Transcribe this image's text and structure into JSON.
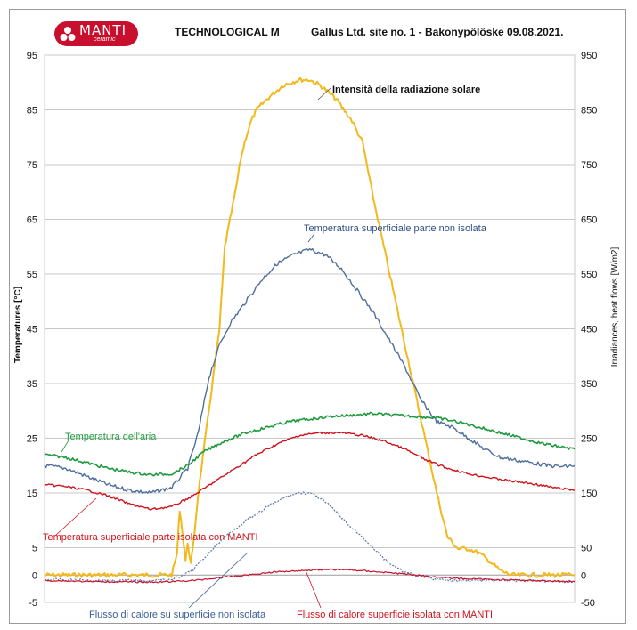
{
  "header": {
    "logo_text": "MANTI",
    "logo_subtext": "ceramic",
    "title_left": "TECHNOLOGICAL M",
    "title_right": "Gallus Ltd. site no. 1 - Bakonypölöske 09.08.2021."
  },
  "colors": {
    "radiation": "#f2b81c",
    "surface_uninsulated": "#4e6f9c",
    "air": "#1e9a3e",
    "surface_insulated": "#d0111b",
    "flow_uninsulated": "#5a78a8",
    "flow_insulated": "#c8102e",
    "grid": "#c8c8c8"
  },
  "chart_data": {
    "type": "line",
    "title": "TECHNOLOGICAL M",
    "subtitle": "Gallus Ltd. site no. 1 - Bakonypölöske 09.08.2021.",
    "xlabel": "",
    "ylabel": "Temperatures [°C]",
    "y2label": "Irradiances, heat flows [W/m2]",
    "ylim": [
      -5,
      95
    ],
    "y2lim": [
      -50,
      950
    ],
    "yticks": [
      "-5",
      "0",
      "5",
      "15",
      "25",
      "35",
      "45",
      "55",
      "65",
      "75",
      "85",
      "95"
    ],
    "y2ticks": [
      "-50",
      "0",
      "50",
      "150",
      "250",
      "350",
      "450",
      "550",
      "650",
      "750",
      "850",
      "950"
    ],
    "grid": true,
    "x_domain": [
      0,
      100
    ],
    "series": [
      {
        "name": "Intensità della radiazione solare",
        "axis": "right",
        "style": "solid",
        "x": [
          0,
          24,
          25,
          25.5,
          26,
          26.6,
          27,
          27.6,
          28,
          29,
          31,
          33,
          34,
          35,
          36,
          37,
          38,
          39,
          40,
          42,
          45,
          48,
          50,
          52,
          55,
          58,
          60,
          61,
          62,
          64,
          66,
          68,
          70,
          72,
          74,
          76,
          78,
          80,
          82,
          84,
          86,
          88,
          90,
          92,
          94,
          96,
          98,
          100
        ],
        "y": [
          0,
          0,
          40,
          120,
          80,
          25,
          60,
          20,
          50,
          150,
          300,
          450,
          600,
          650,
          700,
          760,
          800,
          830,
          850,
          870,
          895,
          905,
          905,
          895,
          870,
          830,
          790,
          740,
          690,
          600,
          510,
          420,
          330,
          240,
          150,
          70,
          48,
          48,
          40,
          25,
          8,
          0,
          0,
          0,
          0,
          0,
          0,
          0
        ]
      },
      {
        "name": "Temperatura superficiale parte non isolata",
        "axis": "left",
        "style": "solid",
        "x": [
          0,
          4,
          8,
          12,
          16,
          20,
          24,
          27,
          29,
          31,
          33,
          35,
          38,
          41,
          44,
          47,
          50,
          53,
          56,
          59,
          62,
          65,
          68,
          71,
          74,
          77,
          80,
          83,
          86,
          89,
          92,
          95,
          98,
          100
        ],
        "y": [
          20,
          19.5,
          18,
          16.5,
          15.5,
          15,
          16,
          19.5,
          26,
          36,
          42,
          46,
          50,
          54,
          57,
          58.5,
          59.5,
          58.5,
          56,
          52,
          48,
          43,
          38,
          32,
          28,
          27,
          25,
          23,
          21.5,
          21,
          20.5,
          20,
          19.8,
          20
        ]
      },
      {
        "name": "Temperatura dell'aria",
        "axis": "left",
        "style": "solid",
        "x": [
          0,
          4,
          8,
          12,
          16,
          20,
          24,
          27,
          30,
          34,
          38,
          42,
          46,
          50,
          54,
          58,
          62,
          66,
          70,
          74,
          78,
          82,
          86,
          90,
          94,
          98,
          100
        ],
        "y": [
          22,
          21.5,
          20.5,
          19.5,
          18.8,
          18.3,
          18.5,
          20,
          22.5,
          24.5,
          26,
          27,
          28,
          28.5,
          29,
          29.2,
          29.5,
          29.2,
          29,
          28.7,
          28,
          27,
          26,
          25,
          24,
          23.3,
          23
        ]
      },
      {
        "name": "Temperatura superficiale parte isolata con MANTI",
        "axis": "left",
        "style": "solid",
        "x": [
          0,
          4,
          8,
          12,
          16,
          20,
          24,
          28,
          32,
          36,
          40,
          44,
          48,
          52,
          56,
          60,
          64,
          68,
          72,
          76,
          80,
          84,
          88,
          92,
          96,
          100
        ],
        "y": [
          16.5,
          16.2,
          15.5,
          14.5,
          13,
          12,
          12.5,
          14.5,
          17,
          19.5,
          22,
          24,
          25.5,
          26,
          26,
          25.5,
          24.5,
          23,
          21,
          19.5,
          18.5,
          17.8,
          17.2,
          16.7,
          16,
          15.5
        ]
      },
      {
        "name": "Flusso di calore su superficie non isolata",
        "axis": "right",
        "style": "dotted",
        "x": [
          0,
          10,
          20,
          24,
          26,
          28,
          30,
          32,
          34,
          36,
          38,
          40,
          42,
          44,
          46,
          48,
          50,
          52,
          54,
          56,
          58,
          60,
          62,
          64,
          66,
          68,
          70,
          72,
          76,
          80,
          84,
          88,
          92,
          96,
          100
        ],
        "y": [
          -8,
          -10,
          -10,
          -8,
          -2,
          10,
          30,
          50,
          70,
          85,
          100,
          110,
          125,
          135,
          145,
          150,
          150,
          140,
          125,
          105,
          85,
          70,
          50,
          30,
          15,
          5,
          0,
          -5,
          -10,
          -10,
          -10,
          -10,
          -10,
          -12,
          -12
        ]
      },
      {
        "name": "Flusso di calore superficie isolata con MANTI",
        "axis": "right",
        "style": "solid",
        "x": [
          0,
          10,
          20,
          24,
          28,
          32,
          36,
          40,
          44,
          48,
          52,
          56,
          60,
          64,
          68,
          72,
          76,
          80,
          84,
          88,
          92,
          96,
          100
        ],
        "y": [
          -10,
          -12,
          -13,
          -12,
          -10,
          -6,
          -2,
          2,
          6,
          8,
          10,
          10,
          8,
          5,
          2,
          -2,
          -5,
          -7,
          -8,
          -9,
          -10,
          -11,
          -12
        ]
      }
    ],
    "annotations": [
      "Intensità della radiazione solare",
      "Temperatura superficiale parte non isolata",
      "Temperatura dell'aria",
      "Temperatura superficiale parte isolata con MANTI",
      "Flusso di calore su superficie non isolata",
      "Flusso di calore superficie isolata con MANTI"
    ]
  }
}
